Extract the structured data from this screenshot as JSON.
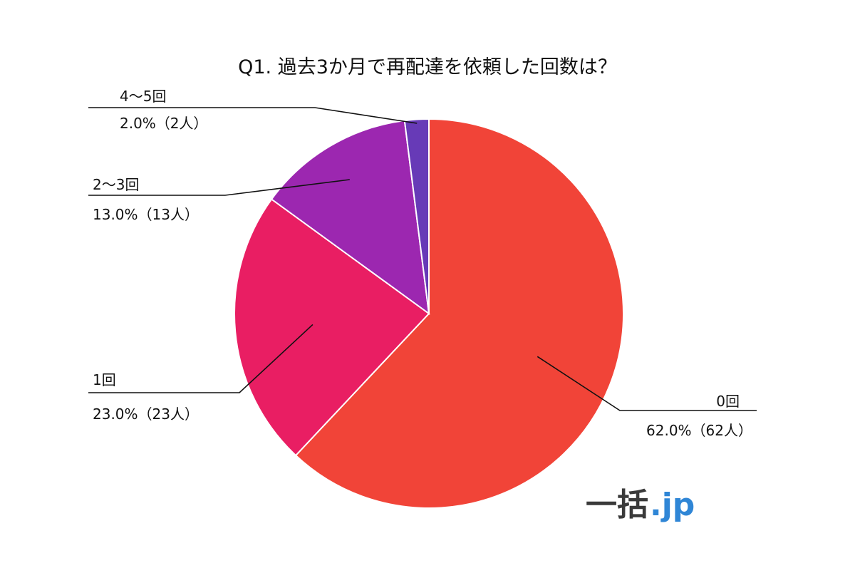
{
  "chart_data": {
    "type": "pie",
    "title": "Q1. 過去3か月で再配達を依頼した回数は？",
    "slices": [
      {
        "label": "0回",
        "value_text": "62.0%（62人）",
        "percent": 62.0,
        "count": 62,
        "color": "#f14438"
      },
      {
        "label": "1回",
        "value_text": "23.0%（23人）",
        "percent": 23.0,
        "count": 23,
        "color": "#e91e63"
      },
      {
        "label": "2〜3回",
        "value_text": "13.0%（13人）",
        "percent": 13.0,
        "count": 13,
        "color": "#9c27b0"
      },
      {
        "label": "4〜5回",
        "value_text": "2.0%（2人）",
        "percent": 2.0,
        "count": 2,
        "color": "#673ab7"
      }
    ],
    "start": "12 o'clock",
    "direction": "clockwise"
  },
  "logo": {
    "main": "一括",
    "accent": ".jp"
  }
}
